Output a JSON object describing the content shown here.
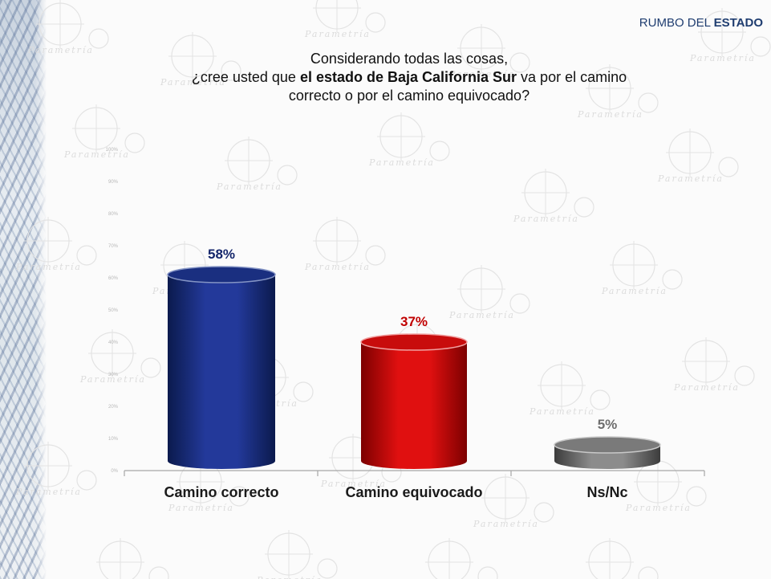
{
  "header": {
    "section_prefix": "RUMBO DEL",
    "section_strong": "ESTADO"
  },
  "question": {
    "line1": "Considerando todas las cosas,",
    "line2_pre": "¿cree usted que ",
    "line2_bold": "el estado de Baja California Sur",
    "line2_post": " va por el camino",
    "line3": "correcto o por el camino equivocado?"
  },
  "watermark_text": "Parametría",
  "colors": {
    "accent": "#1f3d70",
    "bar_correcto": "#14266b",
    "bar_equivocado": "#c00000",
    "bar_nsnc": "#6e6e6e"
  },
  "chart_data": {
    "type": "bar",
    "style": "3d-cylinder",
    "categories": [
      "Camino correcto",
      "Camino equivocado",
      "Ns/Nc"
    ],
    "values": [
      58,
      37,
      5
    ],
    "value_labels": [
      "58%",
      "37%",
      "5%"
    ],
    "ylim": [
      0,
      100
    ],
    "yticks": [
      "0%",
      "10%",
      "20%",
      "30%",
      "40%",
      "50%",
      "60%",
      "70%",
      "80%",
      "90%",
      "100%"
    ],
    "value_label_colors": [
      "#14266b",
      "#c00000",
      "#6e6e6e"
    ],
    "grid": false,
    "legend": "none"
  }
}
